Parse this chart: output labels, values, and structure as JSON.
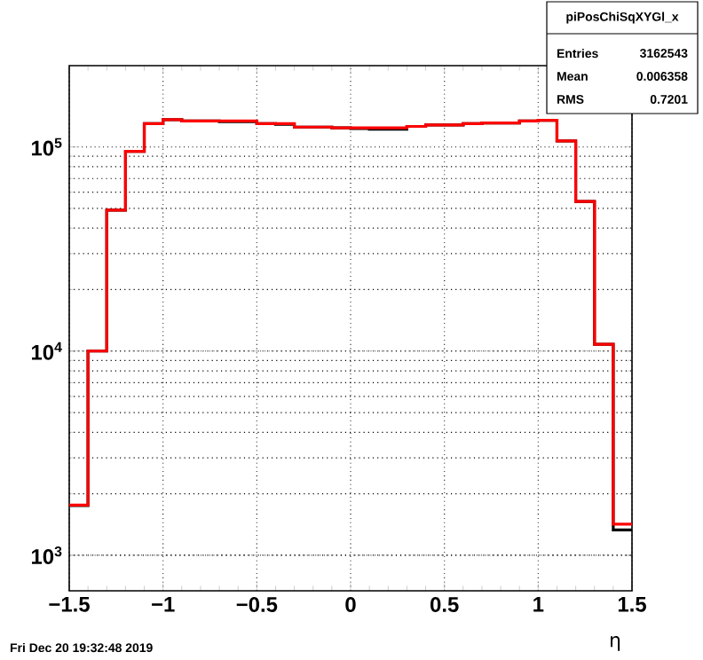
{
  "chart_data": {
    "type": "histogram",
    "xlabel": "η",
    "log": "y",
    "grid": true,
    "bins": [
      -1.5,
      -1.4,
      -1.3,
      -1.2,
      -1.1,
      -1.0,
      -0.9,
      -0.8,
      -0.7,
      -0.6,
      -0.5,
      -0.4,
      -0.3,
      -0.2,
      -0.1,
      0.0,
      0.1,
      0.2,
      0.3,
      0.4,
      0.5,
      0.6,
      0.7,
      0.8,
      0.9,
      1.0,
      1.1,
      1.2,
      1.3,
      1.4,
      1.5
    ],
    "series": [
      {
        "color": "#000000",
        "values": [
          1750,
          10000,
          49000,
          95000,
          130000,
          136000,
          134000,
          134000,
          133000,
          133000,
          130000,
          129000,
          125000,
          125000,
          124000,
          123000,
          122000,
          122000,
          126000,
          128000,
          128000,
          130000,
          131000,
          131000,
          134000,
          135000,
          107000,
          54000,
          10800,
          1330
        ]
      },
      {
        "color": "#ff0000",
        "values": [
          1760,
          10000,
          49000,
          95000,
          130000,
          136000,
          134000,
          134000,
          134000,
          134000,
          130000,
          130000,
          125000,
          125000,
          124000,
          124000,
          124000,
          124000,
          126000,
          128000,
          128000,
          130000,
          131000,
          131000,
          134000,
          135000,
          107000,
          54000,
          10800,
          1420
        ]
      }
    ],
    "xlim": [
      -1.5,
      1.5
    ],
    "xticks": [
      {
        "value": -1.5,
        "label": "−1.5"
      },
      {
        "value": -1,
        "label": "−1"
      },
      {
        "value": -0.5,
        "label": "−0.5"
      },
      0,
      0.5,
      1,
      1.5
    ],
    "ylim": [
      670,
      250000
    ],
    "yticks": [
      {
        "value": 1000,
        "label": "10$^{3}$"
      },
      {
        "value": 10000,
        "label": "10$^{4}$"
      },
      {
        "value": 100000,
        "label": "10$^{5}$"
      }
    ],
    "annotations": [
      "piPosChiSqXYGl_x",
      "Entries",
      "3162543",
      "Mean",
      "0.006358",
      "RMS",
      "0.7201",
      "Fri Dec 20 19:32:48 2019"
    ]
  }
}
